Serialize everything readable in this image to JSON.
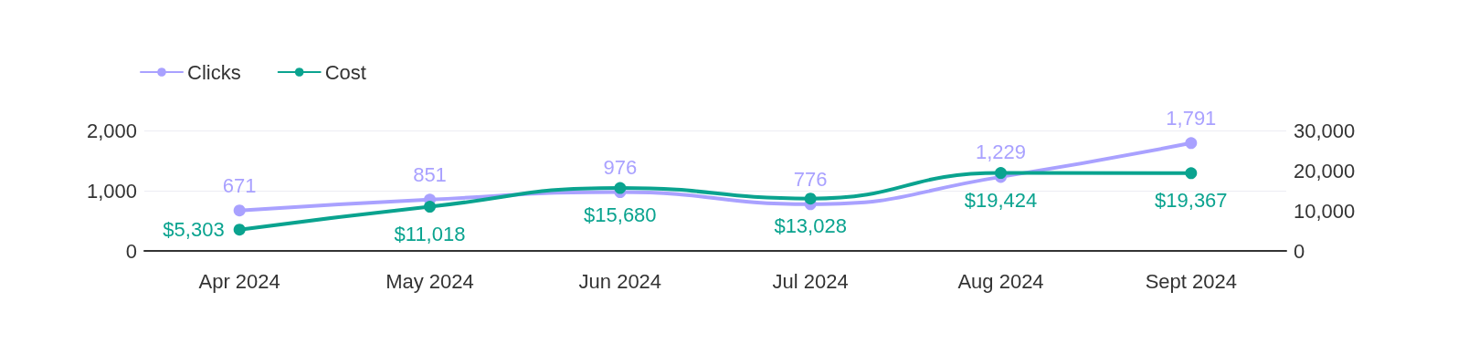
{
  "chart_data": {
    "type": "line",
    "categories": [
      "Apr 2024",
      "May 2024",
      "Jun 2024",
      "Jul 2024",
      "Aug 2024",
      "Sept 2024"
    ],
    "series": [
      {
        "name": "Clicks",
        "color": "#a9a1ff",
        "values": [
          671,
          851,
          976,
          776,
          1229,
          1791
        ],
        "value_labels": [
          "671",
          "851",
          "976",
          "776",
          "1,229",
          "1,791"
        ]
      },
      {
        "name": "Cost",
        "color": "#0aa38f",
        "axis": "y2",
        "values": [
          5303,
          11018,
          15680,
          13028,
          19424,
          19367
        ],
        "value_labels": [
          "$5,303",
          "$11,018",
          "$15,680",
          "$13,028",
          "$19,424",
          "$19,367"
        ]
      }
    ],
    "ylim": [
      0,
      2000
    ],
    "yticks": [
      0,
      {
        "value": 1000,
        "label": "1,000"
      },
      {
        "value": 2000,
        "label": "2,000"
      }
    ],
    "y2lim": [
      0,
      30000
    ],
    "y2ticks": [
      0,
      {
        "value": 10000,
        "label": "10,000"
      },
      {
        "value": 20000,
        "label": "20,000"
      },
      {
        "value": 30000,
        "label": "30,000"
      }
    ],
    "grid": "y",
    "legend": "top left",
    "marker": "circle",
    "line_style": "solid"
  }
}
